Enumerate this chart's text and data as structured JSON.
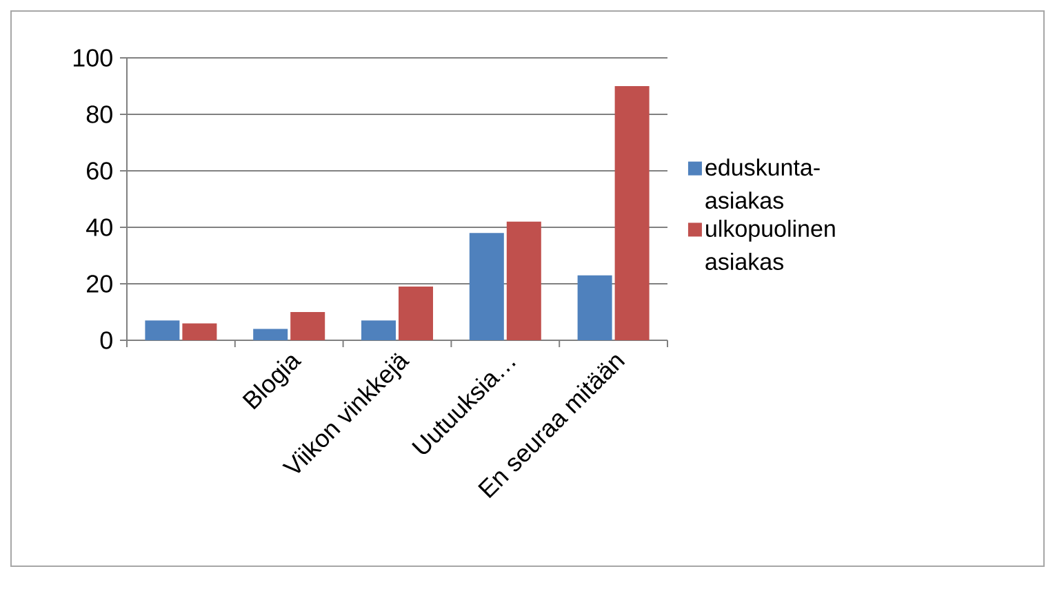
{
  "chart_data": {
    "type": "bar",
    "categories": [
      null,
      "Blogia",
      "Viikon vinkkejä",
      "Uutuuksia…",
      "En seuraa mitään"
    ],
    "series": [
      {
        "name": "eduskunta-asiakas",
        "color": "#4f81bd",
        "values": [
          7,
          4,
          7,
          38,
          23
        ]
      },
      {
        "name": "ulkopuolinen asiakas",
        "color": "#c0504d",
        "values": [
          6,
          10,
          19,
          42,
          90
        ]
      }
    ],
    "ylim": [
      0,
      100
    ],
    "yticks": [
      0,
      20,
      40,
      60,
      80,
      100
    ],
    "grid": "y",
    "legend": "right"
  }
}
